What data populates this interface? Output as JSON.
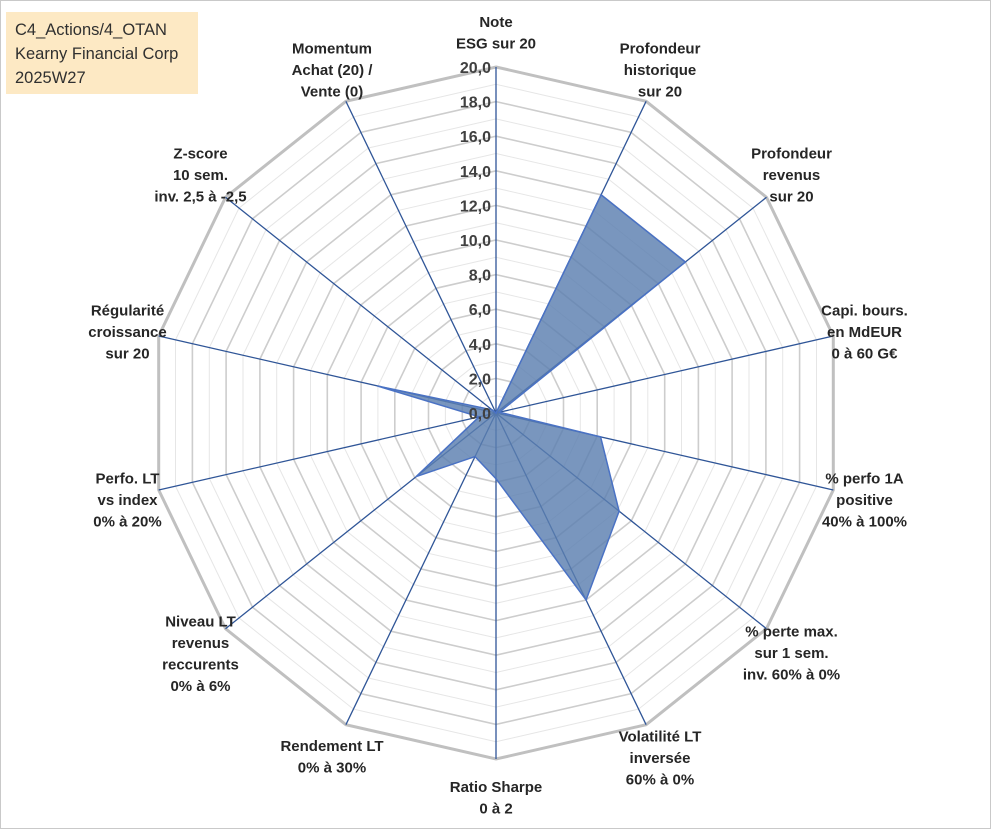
{
  "title_box": {
    "lines": [
      "C4_Actions/4_OTAN",
      "Kearny Financial Corp",
      "2025W27"
    ]
  },
  "colors": {
    "grid": "#bfbfbf",
    "spoke": "#2f5597",
    "fill": "#5b7fb0",
    "fill_opacity": 0.82,
    "outline": "#4a72c4",
    "title_background": "#fde9c4"
  },
  "chart_data": {
    "type": "radar",
    "title": "",
    "rlim": [
      0,
      20
    ],
    "grid": true,
    "tick_labels": [
      "0,0",
      "2,0",
      "4,0",
      "6,0",
      "8,0",
      "10,0",
      "12,0",
      "14,0",
      "16,0",
      "18,0",
      "20,0"
    ],
    "axes": [
      {
        "label": [
          "Note",
          "ESG sur 20"
        ]
      },
      {
        "label": [
          "Profondeur",
          "historique",
          "sur 20"
        ]
      },
      {
        "label": [
          "Profondeur",
          "revenus",
          "sur 20"
        ]
      },
      {
        "label": [
          "Capi. bours.",
          "en MdEUR",
          "0 à 60 G€"
        ]
      },
      {
        "label": [
          "% perfo 1A",
          "positive",
          "40% à 100%"
        ]
      },
      {
        "label": [
          "% perte max.",
          "sur 1 sem.",
          "inv. 60% à 0%"
        ]
      },
      {
        "label": [
          "Volatilité LT",
          "inversée",
          "60% à 0%"
        ]
      },
      {
        "label": [
          "Ratio Sharpe",
          "0 à 2"
        ]
      },
      {
        "label": [
          "Rendement LT",
          "0% à 30%"
        ]
      },
      {
        "label": [
          "Niveau LT",
          "revenus",
          "reccurents",
          "0% à 6%"
        ]
      },
      {
        "label": [
          "Perfo. LT",
          "vs index",
          "0% à 20%"
        ]
      },
      {
        "label": [
          "Régularité",
          "croissance",
          "sur 20"
        ]
      },
      {
        "label": [
          "Z-score",
          "10 sem.",
          "inv. 2,5 à -2,5"
        ]
      },
      {
        "label": [
          "Momentum",
          "Achat (20) /",
          "Vente (0)"
        ]
      }
    ],
    "series": [
      {
        "values": [
          0.0,
          14.0,
          14.0,
          0.2,
          6.2,
          9.1,
          12.0,
          3.8,
          2.8,
          5.9,
          1.0,
          7.0,
          0.3,
          0.0
        ]
      }
    ]
  }
}
